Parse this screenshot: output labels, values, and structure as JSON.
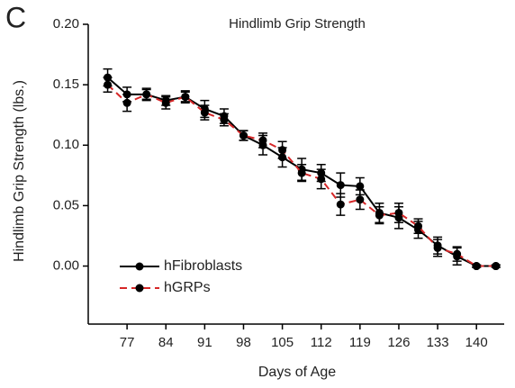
{
  "chart_data": {
    "type": "line",
    "panel": "C",
    "title": "Hindlimb Grip Strength",
    "xlabel": "Days of Age",
    "ylabel": "Hindlimb Grip Strength (lbs.)",
    "x": [
      73.5,
      77,
      80.5,
      84,
      87.5,
      91,
      94.5,
      98,
      101.5,
      105,
      108.5,
      112,
      115.5,
      119,
      122.5,
      126,
      129.5,
      133,
      136.5,
      140,
      143.5
    ],
    "series": [
      {
        "name": "hFibroblasts",
        "color": "#000000",
        "dash": false,
        "values": [
          0.156,
          0.142,
          0.142,
          0.137,
          0.14,
          0.13,
          0.124,
          0.108,
          0.1,
          0.09,
          0.08,
          0.077,
          0.067,
          0.066,
          0.044,
          0.04,
          0.03,
          0.017,
          0.008,
          0.0,
          0.0
        ],
        "errors": [
          0.007,
          0.006,
          0.005,
          0.004,
          0.005,
          0.007,
          0.006,
          0.004,
          0.008,
          0.008,
          0.009,
          0.007,
          0.01,
          0.007,
          0.008,
          0.009,
          0.007,
          0.007,
          0.007,
          0.001,
          0.001
        ]
      },
      {
        "name": "hGRPs",
        "color": "#d62728",
        "dash": true,
        "values": [
          0.15,
          0.135,
          0.142,
          0.135,
          0.14,
          0.127,
          0.121,
          0.108,
          0.104,
          0.096,
          0.077,
          0.072,
          0.051,
          0.055,
          0.042,
          0.044,
          0.033,
          0.015,
          0.01,
          0.0,
          0.0
        ],
        "errors": [
          0.006,
          0.007,
          0.004,
          0.005,
          0.004,
          0.006,
          0.005,
          0.004,
          0.006,
          0.007,
          0.007,
          0.008,
          0.009,
          0.008,
          0.007,
          0.008,
          0.006,
          0.007,
          0.006,
          0.001,
          0.001
        ]
      }
    ],
    "xlim": [
      70,
      145
    ],
    "xticks": [
      77,
      84,
      91,
      98,
      105,
      112,
      119,
      126,
      133,
      140
    ],
    "ylim": [
      -0.048,
      0.2
    ],
    "yticks": [
      {
        "value": 0.0,
        "label": "0.00"
      },
      {
        "value": 0.05,
        "label": "0.05"
      },
      {
        "value": 0.1,
        "label": "0.10"
      },
      {
        "value": 0.15,
        "label": "0.15"
      },
      {
        "value": 0.2,
        "label": "0.20"
      }
    ],
    "legend": "lower left"
  }
}
